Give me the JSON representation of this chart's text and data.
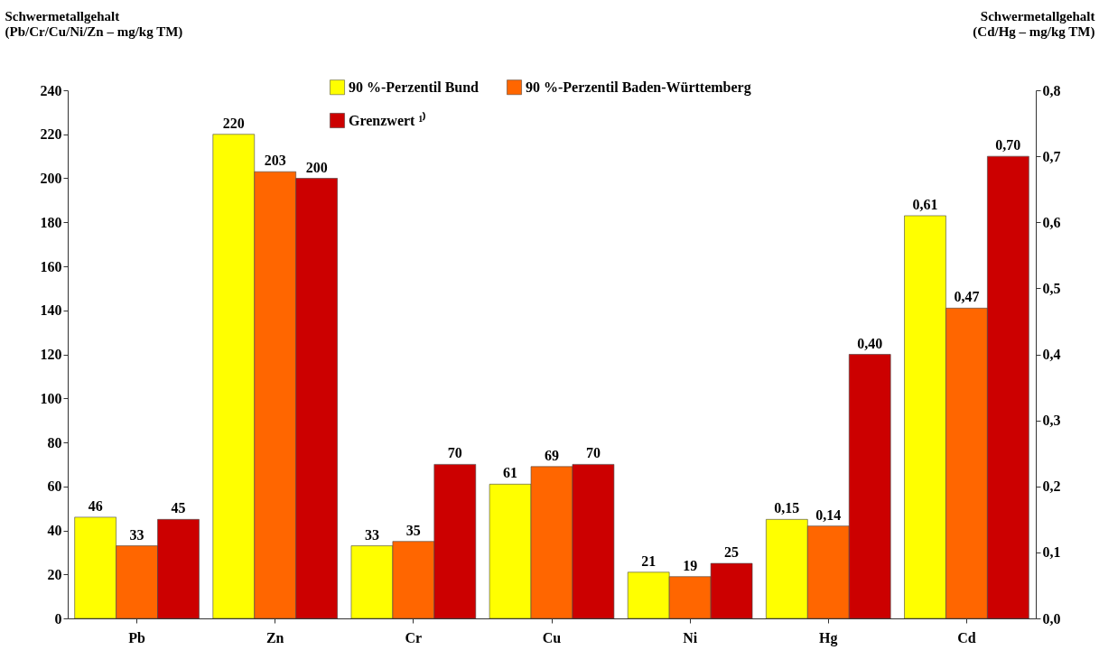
{
  "chart_data": {
    "type": "bar",
    "ylabel": "Schwermetallgehalt\n(Pb/Cr/Cu/Ni/Zn – mg/kg TM)",
    "y2label": "Schwermetallgehalt\n(Cd/Hg – mg/kg TM)",
    "categories": [
      "Pb",
      "Zn",
      "Cr",
      "Cu",
      "Ni",
      "Hg",
      "Cd"
    ],
    "series": [
      {
        "name": "90 %-Perzentil Bund",
        "color": "#ffff00",
        "values": [
          46,
          220,
          33,
          61,
          21,
          null,
          null
        ],
        "value_labels": [
          "46",
          "220",
          "33",
          "61",
          "21",
          null,
          null
        ]
      },
      {
        "name": "90 %-Perzentil Baden-Württemberg",
        "color": "#ff6600",
        "values": [
          33,
          203,
          35,
          69,
          19,
          null,
          null
        ],
        "value_labels": [
          "33",
          "203",
          "35",
          "69",
          "19",
          null,
          null
        ]
      },
      {
        "name": "Grenzwert ¹⁾",
        "color": "#cc0000",
        "values": [
          45,
          200,
          70,
          70,
          25,
          null,
          null
        ],
        "value_labels": [
          "45",
          "200",
          "70",
          "70",
          "25",
          null,
          null
        ]
      },
      {
        "color": "#ffff00",
        "axis": "y2",
        "values": [
          null,
          null,
          null,
          null,
          null,
          0.15,
          0.61
        ],
        "value_labels": [
          null,
          null,
          null,
          null,
          null,
          "0,15",
          "0,61"
        ]
      },
      {
        "color": "#ff6600",
        "axis": "y2",
        "values": [
          null,
          null,
          null,
          null,
          null,
          0.14,
          0.47
        ],
        "value_labels": [
          null,
          null,
          null,
          null,
          null,
          "0,14",
          "0,47"
        ]
      },
      {
        "color": "#cc0000",
        "axis": "y2",
        "values": [
          null,
          null,
          null,
          null,
          null,
          0.4,
          0.7
        ],
        "value_labels": [
          null,
          null,
          null,
          null,
          null,
          "0,40",
          "0,70"
        ]
      }
    ],
    "ylim": [
      0,
      240
    ],
    "yticks": [
      0,
      20,
      40,
      60,
      80,
      100,
      120,
      140,
      160,
      180,
      200,
      220,
      240
    ],
    "y2lim": [
      0,
      0.8
    ],
    "y2ticks": [
      {
        "value": 0,
        "label": "0,0"
      },
      {
        "value": 0.1,
        "label": "0,1"
      },
      {
        "value": 0.2,
        "label": "0,2"
      },
      {
        "value": 0.3,
        "label": "0,3"
      },
      {
        "value": 0.4,
        "label": "0,4"
      },
      {
        "value": 0.5,
        "label": "0,5"
      },
      {
        "value": 0.6,
        "label": "0,6"
      },
      {
        "value": 0.7,
        "label": "0,7"
      },
      {
        "value": 0.8,
        "label": "0,8"
      }
    ],
    "legend": "top"
  }
}
